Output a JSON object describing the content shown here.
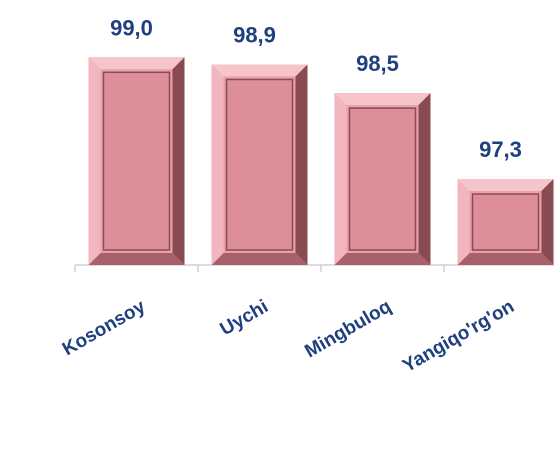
{
  "chart_data": {
    "type": "bar",
    "categories": [
      "Kosonsoy",
      "Uychi",
      "Mingbuloq",
      "Yangiqo'rg'on"
    ],
    "values": [
      99.0,
      98.9,
      98.5,
      97.3
    ],
    "value_labels": [
      "99,0",
      "98,9",
      "98,5",
      "97,3"
    ],
    "color": "#e8a0aa",
    "ylim": [
      96.1,
      99.8
    ]
  }
}
